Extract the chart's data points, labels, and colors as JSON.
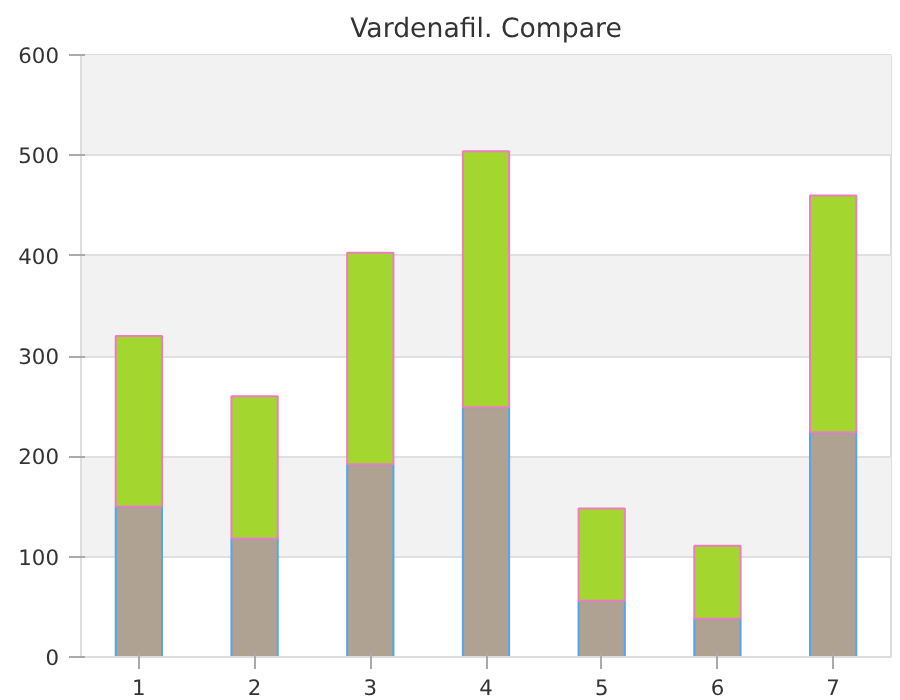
{
  "chart_data": {
    "type": "bar",
    "title": "Vardenafil. Compare",
    "stacked": true,
    "categories": [
      "1",
      "2",
      "3",
      "4",
      "5",
      "6",
      "7"
    ],
    "series": [
      {
        "color": "#b0a293",
        "values": [
          150,
          118,
          192,
          249,
          56,
          38,
          224
        ]
      },
      {
        "color": "#a3d62e",
        "values": [
          170,
          142,
          211,
          255,
          92,
          73,
          236
        ]
      }
    ],
    "ylim": [
      0,
      600
    ],
    "yticks": [
      0,
      100,
      200,
      300,
      400,
      500,
      600
    ],
    "grid": "y"
  }
}
